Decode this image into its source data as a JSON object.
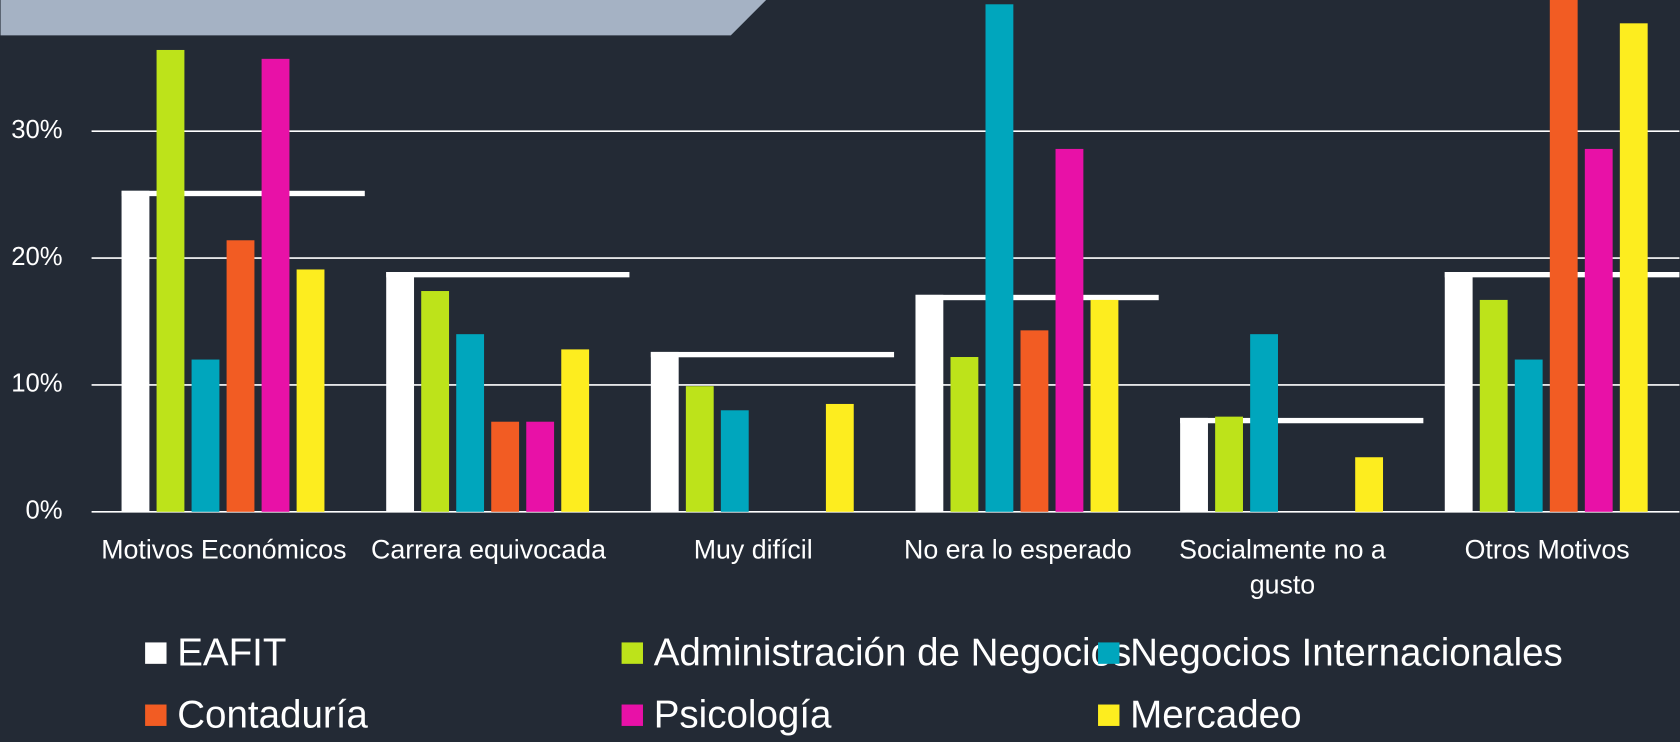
{
  "chart_data": {
    "type": "bar",
    "categories": [
      "Motivos Económicos",
      "Carrera equivocada",
      "Muy difícil",
      "No era lo esperado",
      "Socialmente no a gusto",
      "Otros Motivos"
    ],
    "series": [
      {
        "name": "EAFIT",
        "color": "#ffffff",
        "values": [
          25.3,
          18.9,
          12.6,
          17.1,
          7.4,
          18.9
        ]
      },
      {
        "name": "Administración de Negocios",
        "color": "#bde31a",
        "values": [
          36.4,
          17.4,
          9.9,
          12.2,
          7.5,
          16.7
        ]
      },
      {
        "name": "Negocios Internacionales",
        "color": "#00a6bd",
        "values": [
          12.0,
          14.0,
          8.0,
          40.0,
          14.0,
          12.0
        ]
      },
      {
        "name": "Contaduría",
        "color": "#f25c23",
        "values": [
          21.4,
          7.1,
          0,
          14.3,
          0,
          43.0
        ]
      },
      {
        "name": "Psicología",
        "color": "#e811a7",
        "values": [
          35.7,
          7.1,
          0,
          28.6,
          0,
          28.6
        ]
      },
      {
        "name": "Mercadeo",
        "color": "#fded1f",
        "values": [
          19.1,
          12.8,
          8.5,
          16.7,
          4.3,
          38.5
        ]
      }
    ],
    "ylim": [
      0,
      40
    ],
    "yticks": [
      {
        "value": 0,
        "label": "0%"
      },
      {
        "value": 10,
        "label": "10%"
      },
      {
        "value": 20,
        "label": "20%"
      },
      {
        "value": 30,
        "label": "30%"
      }
    ],
    "grid": true
  }
}
